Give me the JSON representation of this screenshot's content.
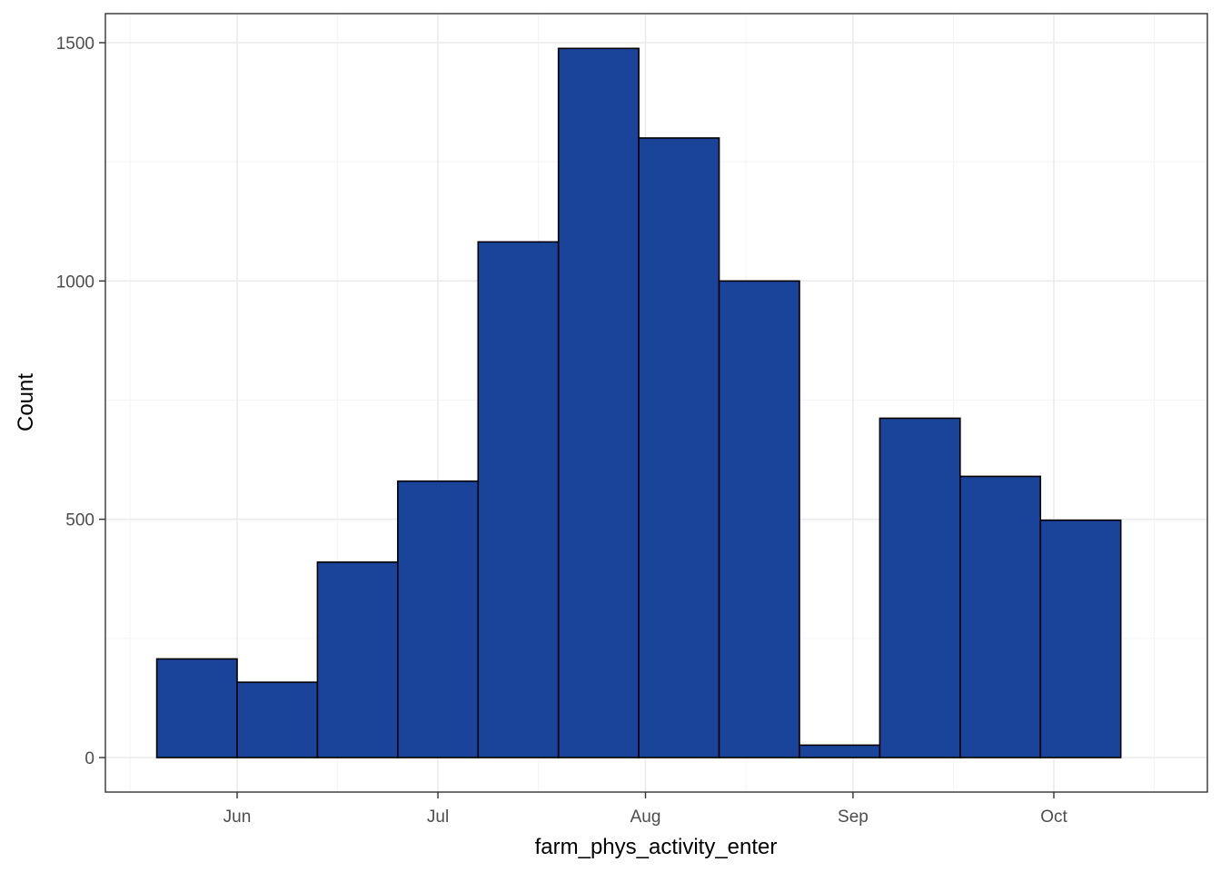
{
  "chart_data": {
    "type": "bar",
    "title": "",
    "xlabel": "farm_phys_activity_enter",
    "ylabel": "Count",
    "x_ticks": [
      "Jun",
      "Jul",
      "Aug",
      "Sep",
      "Oct"
    ],
    "y_ticks": [
      "0",
      "500",
      "1000",
      "1500"
    ],
    "ylim": [
      0,
      1500
    ],
    "grid": true,
    "bins": [
      {
        "start": "2021-05-20",
        "end": "2021-06-01",
        "count": 207
      },
      {
        "start": "2021-06-01",
        "end": "2021-06-13",
        "count": 158
      },
      {
        "start": "2021-06-13",
        "end": "2021-06-25",
        "count": 410
      },
      {
        "start": "2021-06-25",
        "end": "2021-07-07",
        "count": 580
      },
      {
        "start": "2021-07-07",
        "end": "2021-07-19",
        "count": 1082
      },
      {
        "start": "2021-07-19",
        "end": "2021-07-31",
        "count": 1488
      },
      {
        "start": "2021-07-31",
        "end": "2021-08-12",
        "count": 1300
      },
      {
        "start": "2021-08-12",
        "end": "2021-08-24",
        "count": 1000
      },
      {
        "start": "2021-08-24",
        "end": "2021-09-05",
        "count": 26
      },
      {
        "start": "2021-09-05",
        "end": "2021-09-17",
        "count": 712
      },
      {
        "start": "2021-09-17",
        "end": "2021-09-29",
        "count": 590
      },
      {
        "start": "2021-09-29",
        "end": "2021-10-11",
        "count": 498
      }
    ],
    "colors": {
      "bar_fill": "#1a4499",
      "bar_stroke": "#000000",
      "grid_major": "#ebebeb",
      "grid_minor": "#f5f5f5",
      "panel_border": "#333333"
    }
  }
}
